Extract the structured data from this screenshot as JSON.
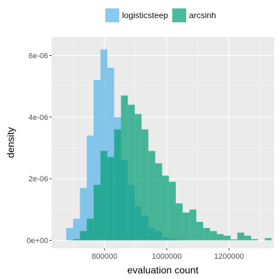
{
  "chart_data": {
    "type": "histogram",
    "xlabel": "evaluation count",
    "ylabel": "density",
    "x_ticks": [
      800000,
      1000000,
      1200000
    ],
    "x_tick_labels": [
      "800000",
      "1000000",
      "1200000"
    ],
    "y_ticks": [
      0,
      2e-06,
      4e-06,
      6e-06
    ],
    "y_tick_labels": [
      "0e+00",
      "2e-06",
      "4e-06",
      "6e-06"
    ],
    "xlim": [
      630000,
      1345000
    ],
    "ylim": [
      -2.6e-07,
      6.6e-06
    ],
    "bin_start": 655000,
    "bin_width": 22000,
    "grid": true,
    "legend_position": "top",
    "series": [
      {
        "name": "logisticsteep",
        "color": "#56B4E9",
        "opacity": 0.7,
        "values": [
          0,
          4e-07,
          7e-07,
          1.7e-06,
          3.4e-06,
          5.2e-06,
          6.2e-06,
          5.6e-06,
          4e-06,
          2.6e-06,
          1.8e-06,
          1.1e-06,
          8e-07,
          4e-07,
          3e-07,
          1e-07,
          5e-08,
          3e-08,
          0,
          0,
          0,
          0,
          0,
          0,
          0,
          0,
          0,
          0,
          0,
          0,
          0,
          0
        ]
      },
      {
        "name": "arcsinh",
        "color": "#009E73",
        "opacity": 0.7,
        "values": [
          0,
          0,
          4e-08,
          3e-07,
          7e-07,
          1.8e-06,
          2.9e-06,
          2.7e-06,
          3.6e-06,
          4.7e-06,
          4.4e-06,
          4.1e-06,
          3.6e-06,
          2.9e-06,
          2.5e-06,
          2.1e-06,
          1.9e-06,
          1.2e-06,
          9e-07,
          1e-06,
          6e-07,
          4e-07,
          3e-07,
          2e-07,
          1.5e-07,
          3e-08,
          2.5e-07,
          1.5e-07,
          4e-08,
          0,
          7e-08,
          0
        ]
      }
    ]
  }
}
